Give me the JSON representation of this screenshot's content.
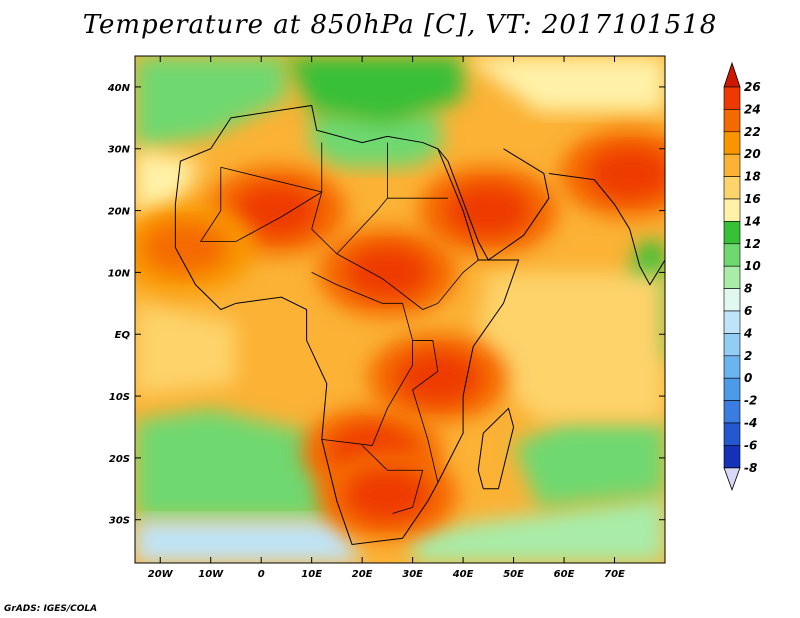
{
  "title": "Temperature at 850hPa [C], VT: 2017101518",
  "credit": "GrADS: IGES/COLA",
  "chart_data": {
    "type": "heatmap",
    "title": "Temperature at 850hPa [C], VT: 2017101518",
    "units": "C",
    "valid_time": "2017101518",
    "xlim": [
      -25,
      80
    ],
    "ylim": [
      -37,
      45
    ],
    "x_ticks": [
      -20,
      -10,
      0,
      10,
      20,
      30,
      40,
      50,
      60,
      70
    ],
    "x_tick_labels": [
      "20W",
      "10W",
      "0",
      "10E",
      "20E",
      "30E",
      "40E",
      "50E",
      "60E",
      "70E"
    ],
    "y_ticks": [
      40,
      30,
      20,
      10,
      0,
      -10,
      -20,
      -30
    ],
    "y_tick_labels": [
      "40N",
      "30N",
      "20N",
      "10N",
      "EQ",
      "10S",
      "20S",
      "30S"
    ],
    "colorbar": {
      "levels": [
        26,
        24,
        22,
        20,
        18,
        16,
        14,
        12,
        10,
        8,
        6,
        4,
        2,
        0,
        -2,
        -4,
        -6,
        -8
      ],
      "labels": [
        "26",
        "24",
        "22",
        "20",
        "18",
        "16",
        "14",
        "12",
        "10",
        "8",
        "6",
        "4",
        "2",
        "0",
        "-2",
        "-4",
        "-6",
        "-8"
      ],
      "colors": [
        "#e01a00",
        "#ee3a00",
        "#f56a00",
        "#f99500",
        "#fbb235",
        "#fdd36b",
        "#fff2a8",
        "#38c038",
        "#70d870",
        "#a8eca8",
        "#e0f8f0",
        "#bfe4f8",
        "#93cdf4",
        "#6ab4ef",
        "#4d9ae8",
        "#3a7ce0",
        "#2358cf",
        "#1432b8",
        "#0c1e8e"
      ],
      "top_arrow_color": "#d01800",
      "bottom_arrow_color": "#d8d8f8"
    },
    "features": {
      "hot_cores": [
        {
          "lon": 3,
          "lat": 20,
          "value": 25
        },
        {
          "lon": 25,
          "lat": 10,
          "value": 25
        },
        {
          "lon": 45,
          "lat": 20,
          "value": 25
        },
        {
          "lon": 73,
          "lat": 26,
          "value": 25
        },
        {
          "lon": 22,
          "lat": -19,
          "value": 25
        },
        {
          "lon": 25,
          "lat": -26,
          "value": 25
        },
        {
          "lon": 35,
          "lat": -7,
          "value": 25
        },
        {
          "lon": -15,
          "lat": 14,
          "value": 23
        }
      ],
      "cool_regions": [
        {
          "lon": 20,
          "lat": 33,
          "value": 11
        },
        {
          "lon": 30,
          "lat": 39,
          "value": 12
        },
        {
          "lon": -10,
          "lat": -32,
          "value": 4
        },
        {
          "lon": 40,
          "lat": -36,
          "value": 7
        },
        {
          "lon": 65,
          "lat": -20,
          "value": 12
        }
      ]
    }
  }
}
